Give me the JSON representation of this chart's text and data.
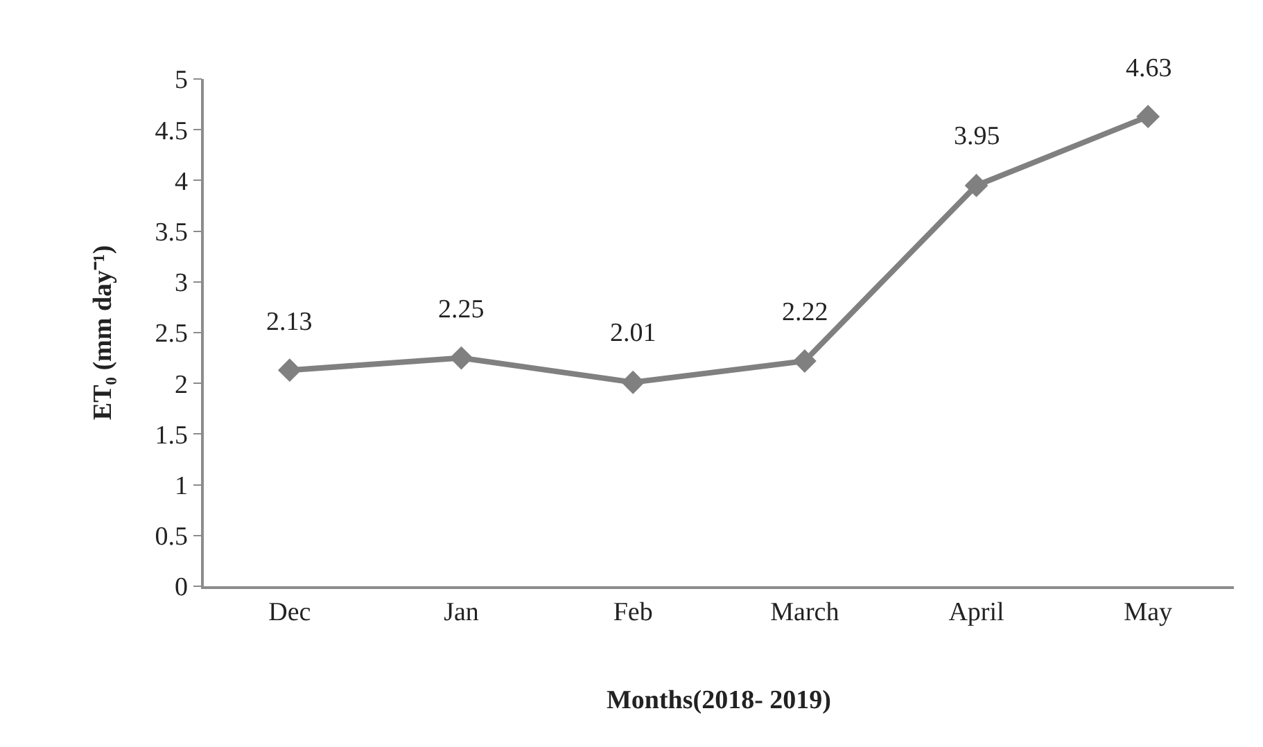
{
  "chart_data": {
    "type": "line",
    "xlabel": "Months(2018- 2019)",
    "ylabel": "ET₀ (mm day⁻¹)",
    "categories": [
      "Dec",
      "Jan",
      "Feb",
      "March",
      "April",
      "May"
    ],
    "series": [
      {
        "color": "#808080",
        "values": [
          2.13,
          2.25,
          2.01,
          2.22,
          3.95,
          4.63
        ]
      }
    ],
    "ylim": [
      0,
      5
    ],
    "yticks": [
      0,
      0.5,
      1,
      1.5,
      2,
      2.5,
      3,
      3.5,
      4,
      4.5,
      5
    ],
    "data_labels": true,
    "marker": "diamond",
    "line_style": "solid"
  }
}
